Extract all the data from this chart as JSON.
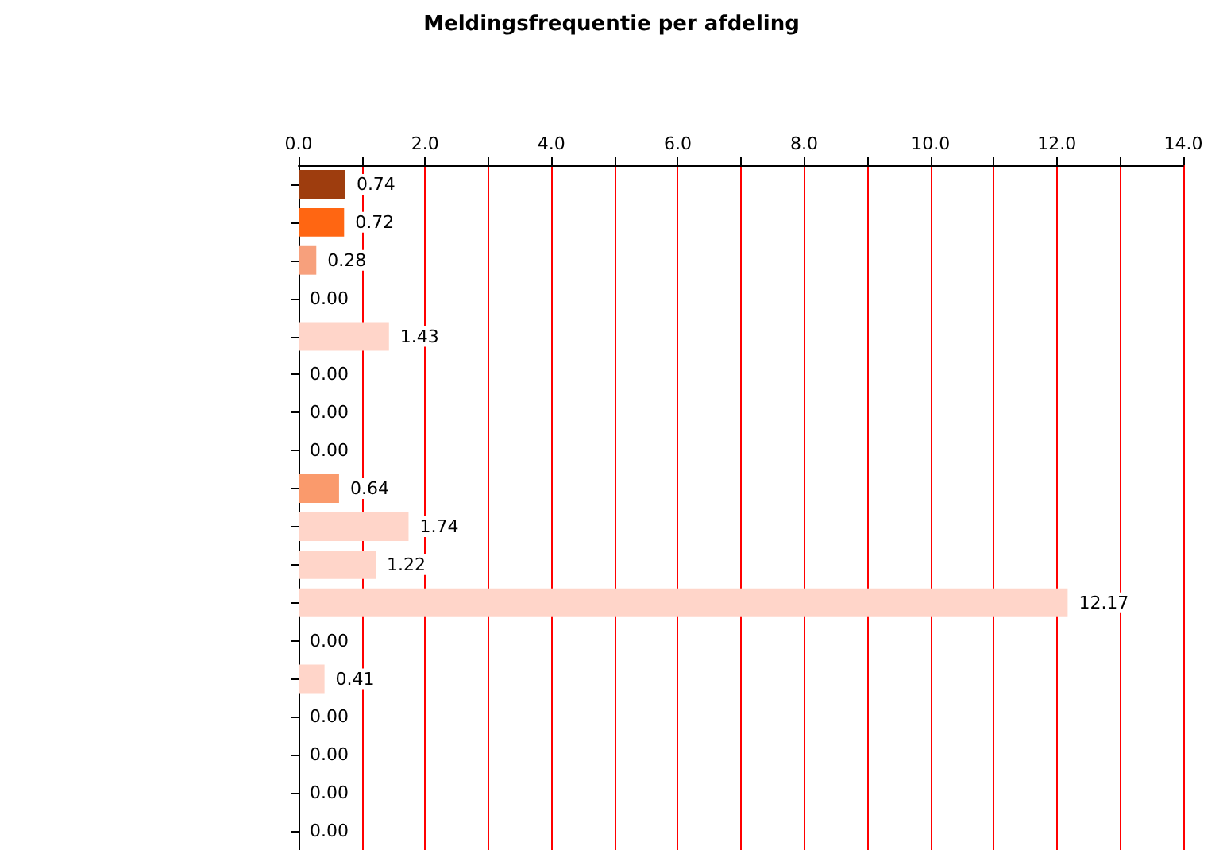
{
  "chart_data": {
    "type": "bar",
    "orientation": "horizontal",
    "title": "Meldingsfrequentie per afdeling",
    "categories": [
      null,
      null,
      null,
      null,
      null,
      null,
      null,
      null,
      null,
      null,
      null,
      null,
      null,
      null,
      null,
      null,
      null,
      null
    ],
    "values": [
      0.74,
      0.72,
      0.28,
      0,
      1.43,
      0,
      0,
      0,
      0.64,
      1.74,
      1.22,
      12.17,
      0,
      0.41,
      0,
      0,
      0,
      0
    ],
    "colors": [
      "#9e3d0e",
      "#ff6612",
      "#f7a07c",
      "#ffd5c9",
      "#ffd5c9",
      "#ffd5c9",
      "#ffd5c9",
      "#ffd5c9",
      "#fa9a6c",
      "#ffd5c9",
      "#ffd5c9",
      "#ffd5c9",
      "#ffd5c9",
      "#ffd5c9",
      "#ffd5c9",
      "#ffd5c9",
      "#ffd5c9",
      "#ffd5c9"
    ],
    "value_labels": [
      "0.74",
      "0.72",
      "0.28",
      "0.00",
      "1.43",
      "0.00",
      "0.00",
      "0.00",
      "0.64",
      "1.74",
      "1.22",
      "12.17",
      "0.00",
      "0.41",
      "0.00",
      "0.00",
      "0.00",
      "0.00"
    ],
    "xlim": [
      0,
      14
    ],
    "xticks": [
      {
        "value": 0,
        "label": "0.0"
      },
      {
        "value": 1,
        "label": null
      },
      {
        "value": 2,
        "label": "2.0"
      },
      {
        "value": 3,
        "label": null
      },
      {
        "value": 4,
        "label": "4.0"
      },
      {
        "value": 5,
        "label": null
      },
      {
        "value": 6,
        "label": "6.0"
      },
      {
        "value": 7,
        "label": null
      },
      {
        "value": 8,
        "label": "8.0"
      },
      {
        "value": 9,
        "label": null
      },
      {
        "value": 10,
        "label": "10.0"
      },
      {
        "value": 11,
        "label": null
      },
      {
        "value": 12,
        "label": "12.0"
      },
      {
        "value": 13,
        "label": null
      },
      {
        "value": 14,
        "label": "14.0"
      }
    ],
    "grid": "x"
  }
}
